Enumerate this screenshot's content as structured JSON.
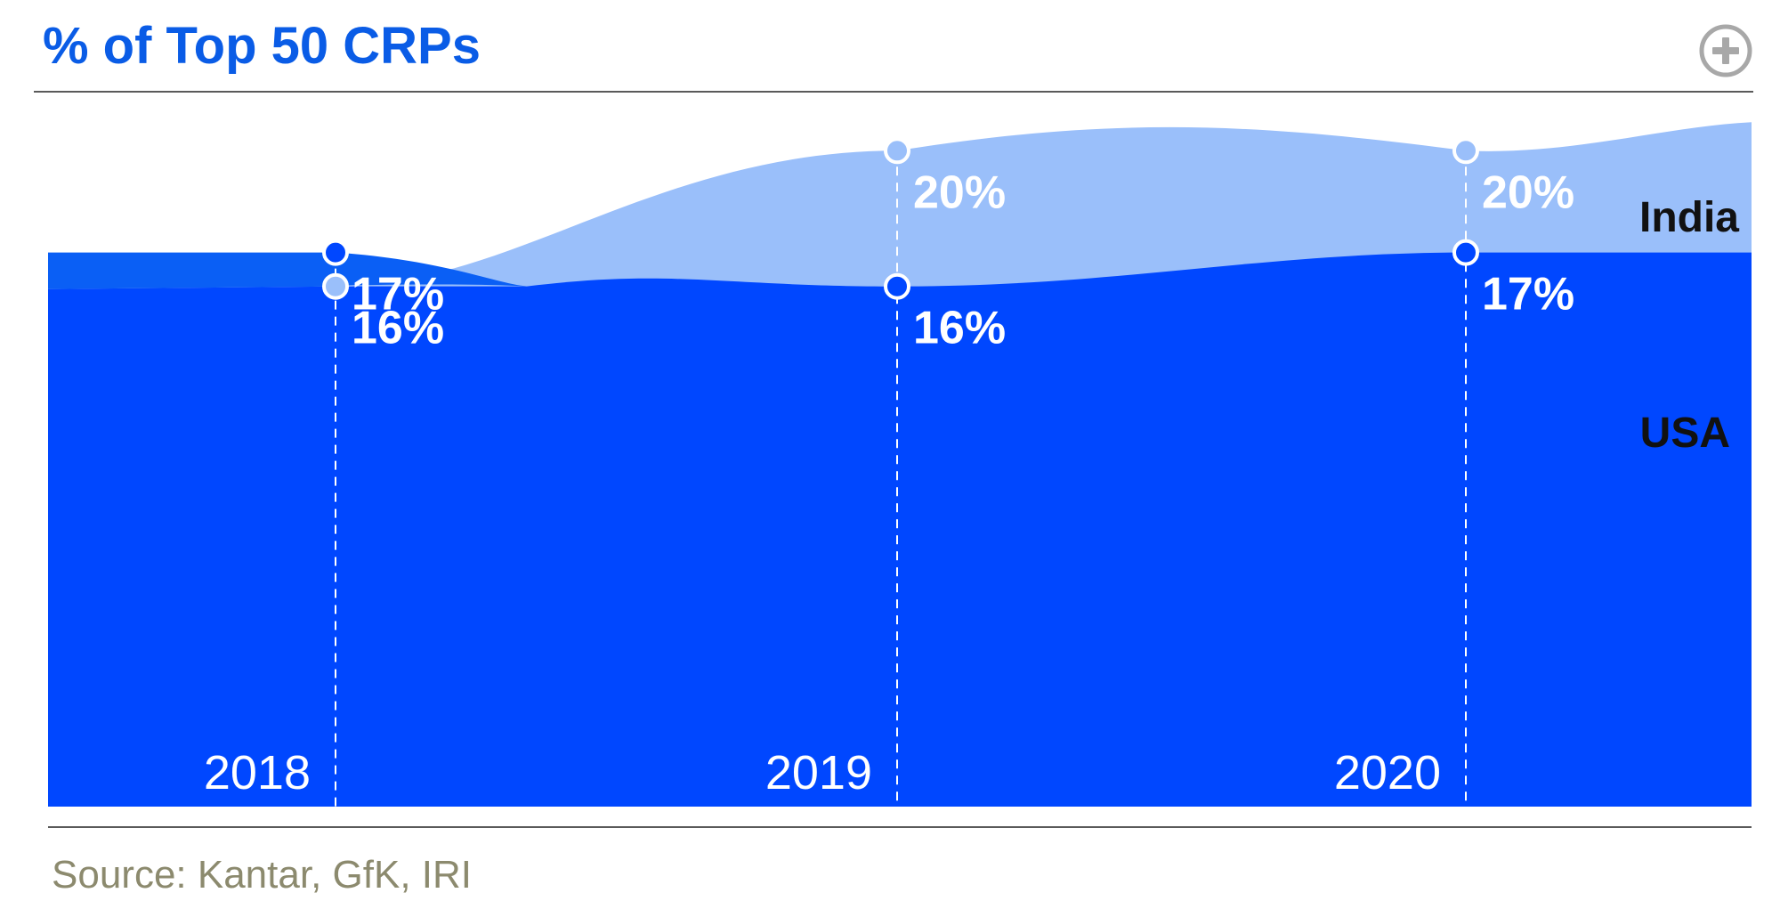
{
  "header": {
    "title": "% of Top 50 CRPs",
    "expand_icon": "plus-circle-icon"
  },
  "footer": {
    "source": "Source: Kantar, GfK, IRI"
  },
  "colors": {
    "title": "#0a5ce6",
    "india": "#9abffa",
    "usa": "#0047ff",
    "usa_2018_cap": "#0a5ff5",
    "source": "#8c8a6e"
  },
  "chart_data": {
    "type": "area",
    "categories": [
      "2018",
      "2019",
      "2020"
    ],
    "series": [
      {
        "name": "India",
        "values": [
          16,
          20,
          20
        ],
        "labels": [
          "16%",
          "20%",
          "20%"
        ]
      },
      {
        "name": "USA",
        "values": [
          17,
          16,
          17
        ],
        "labels": [
          "17%",
          "16%",
          "17%"
        ]
      }
    ],
    "title": "% of Top 50 CRPs",
    "xlabel": "",
    "ylabel": "",
    "ylim": [
      0,
      24
    ],
    "grid": false,
    "legend": "right"
  }
}
